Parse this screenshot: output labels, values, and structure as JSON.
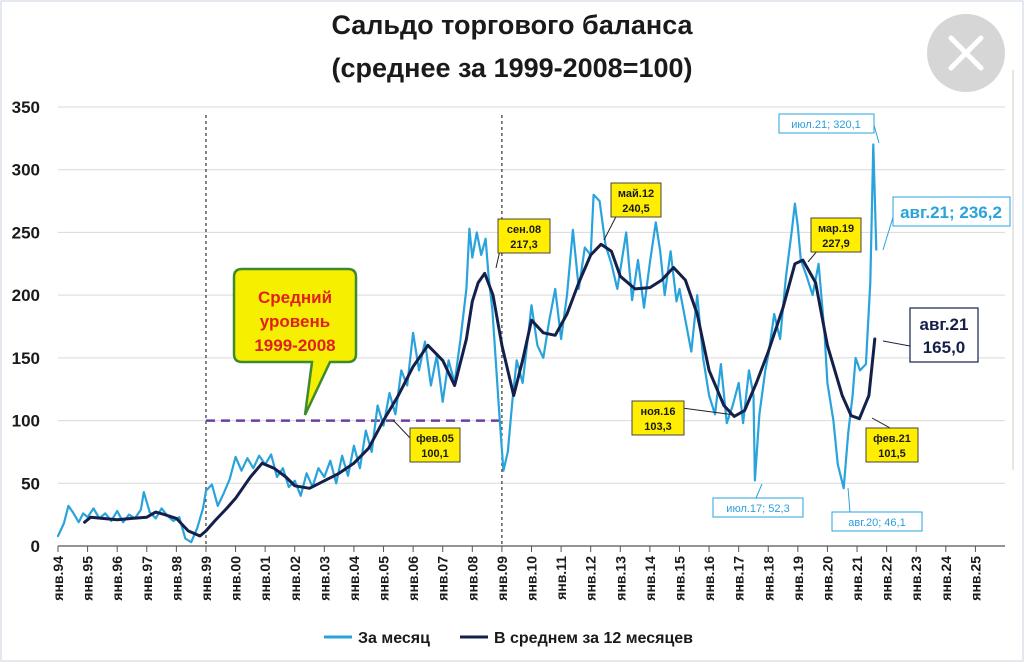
{
  "chart_data": {
    "type": "line",
    "title_line1": "Сальдо торгового баланса",
    "title_line2": "(среднее за 1999-2008=100)",
    "ylim": [
      0,
      350
    ],
    "yticks": [
      0,
      50,
      100,
      150,
      200,
      250,
      300,
      350
    ],
    "grid": true,
    "x_domain": [
      1994,
      2026
    ],
    "xticks": [
      {
        "x": 1994,
        "label": "янв.94"
      },
      {
        "x": 1995,
        "label": "янв.95"
      },
      {
        "x": 1996,
        "label": "янв.96"
      },
      {
        "x": 1997,
        "label": "янв.97"
      },
      {
        "x": 1998,
        "label": "янв.98"
      },
      {
        "x": 1999,
        "label": "янв.99"
      },
      {
        "x": 2000,
        "label": "янв.00"
      },
      {
        "x": 2001,
        "label": "янв.01"
      },
      {
        "x": 2002,
        "label": "янв.02"
      },
      {
        "x": 2003,
        "label": "янв.03"
      },
      {
        "x": 2004,
        "label": "янв.04"
      },
      {
        "x": 2005,
        "label": "янв.05"
      },
      {
        "x": 2006,
        "label": "янв.06"
      },
      {
        "x": 2007,
        "label": "янв.07"
      },
      {
        "x": 2008,
        "label": "янв.08"
      },
      {
        "x": 2009,
        "label": "янв.09"
      },
      {
        "x": 2010,
        "label": "янв.10"
      },
      {
        "x": 2011,
        "label": "янв.11"
      },
      {
        "x": 2012,
        "label": "янв.12"
      },
      {
        "x": 2013,
        "label": "янв.13"
      },
      {
        "x": 2014,
        "label": "янв.14"
      },
      {
        "x": 2015,
        "label": "янв.15"
      },
      {
        "x": 2016,
        "label": "янв.16"
      },
      {
        "x": 2017,
        "label": "янв.17"
      },
      {
        "x": 2018,
        "label": "янв.18"
      },
      {
        "x": 2019,
        "label": "янв.19"
      },
      {
        "x": 2020,
        "label": "янв.20"
      },
      {
        "x": 2021,
        "label": "янв.21"
      },
      {
        "x": 2022,
        "label": "янв.22"
      },
      {
        "x": 2023,
        "label": "янв.23"
      },
      {
        "x": 2024,
        "label": "янв.24"
      },
      {
        "x": 2025,
        "label": "янв.25"
      }
    ],
    "series": [
      {
        "name": "За месяц",
        "color": "#29a3dc",
        "points": [
          [
            1994.0,
            8
          ],
          [
            1994.2,
            18
          ],
          [
            1994.35,
            32
          ],
          [
            1994.5,
            27
          ],
          [
            1994.7,
            19
          ],
          [
            1994.85,
            26
          ],
          [
            1995.0,
            23
          ],
          [
            1995.2,
            30
          ],
          [
            1995.4,
            22
          ],
          [
            1995.6,
            26
          ],
          [
            1995.8,
            20
          ],
          [
            1996.0,
            28
          ],
          [
            1996.2,
            19
          ],
          [
            1996.4,
            25
          ],
          [
            1996.6,
            22
          ],
          [
            1996.8,
            29
          ],
          [
            1996.9,
            43
          ],
          [
            1997.1,
            27
          ],
          [
            1997.3,
            22
          ],
          [
            1997.5,
            30
          ],
          [
            1997.7,
            24
          ],
          [
            1997.9,
            20
          ],
          [
            1998.1,
            23
          ],
          [
            1998.3,
            6
          ],
          [
            1998.5,
            3
          ],
          [
            1998.7,
            14
          ],
          [
            1998.9,
            30
          ],
          [
            1999.0,
            44
          ],
          [
            1999.2,
            49
          ],
          [
            1999.4,
            32
          ],
          [
            1999.6,
            42
          ],
          [
            1999.8,
            53
          ],
          [
            2000.0,
            71
          ],
          [
            2000.2,
            60
          ],
          [
            2000.4,
            70
          ],
          [
            2000.6,
            62
          ],
          [
            2000.8,
            72
          ],
          [
            2001.0,
            65
          ],
          [
            2001.2,
            73
          ],
          [
            2001.4,
            55
          ],
          [
            2001.6,
            62
          ],
          [
            2001.8,
            47
          ],
          [
            2002.0,
            52
          ],
          [
            2002.2,
            40
          ],
          [
            2002.4,
            58
          ],
          [
            2002.6,
            47
          ],
          [
            2002.8,
            62
          ],
          [
            2003.0,
            55
          ],
          [
            2003.2,
            68
          ],
          [
            2003.4,
            50
          ],
          [
            2003.6,
            72
          ],
          [
            2003.8,
            56
          ],
          [
            2004.0,
            80
          ],
          [
            2004.2,
            62
          ],
          [
            2004.4,
            92
          ],
          [
            2004.6,
            75
          ],
          [
            2004.8,
            112
          ],
          [
            2005.0,
            96
          ],
          [
            2005.2,
            122
          ],
          [
            2005.4,
            105
          ],
          [
            2005.6,
            140
          ],
          [
            2005.8,
            128
          ],
          [
            2006.0,
            170
          ],
          [
            2006.2,
            140
          ],
          [
            2006.4,
            163
          ],
          [
            2006.6,
            128
          ],
          [
            2006.8,
            152
          ],
          [
            2007.0,
            115
          ],
          [
            2007.2,
            148
          ],
          [
            2007.4,
            130
          ],
          [
            2007.6,
            165
          ],
          [
            2007.8,
            205
          ],
          [
            2007.9,
            253
          ],
          [
            2008.0,
            230
          ],
          [
            2008.15,
            250
          ],
          [
            2008.3,
            232
          ],
          [
            2008.45,
            245
          ],
          [
            2008.55,
            215
          ],
          [
            2008.68,
            188
          ],
          [
            2008.8,
            145
          ],
          [
            2008.9,
            110
          ],
          [
            2009.05,
            60
          ],
          [
            2009.2,
            75
          ],
          [
            2009.35,
            115
          ],
          [
            2009.5,
            148
          ],
          [
            2009.7,
            130
          ],
          [
            2009.9,
            170
          ],
          [
            2010.0,
            192
          ],
          [
            2010.2,
            160
          ],
          [
            2010.4,
            150
          ],
          [
            2010.6,
            180
          ],
          [
            2010.8,
            205
          ],
          [
            2011.0,
            165
          ],
          [
            2011.2,
            200
          ],
          [
            2011.4,
            252
          ],
          [
            2011.6,
            205
          ],
          [
            2011.8,
            238
          ],
          [
            2012.0,
            232
          ],
          [
            2012.1,
            280
          ],
          [
            2012.3,
            275
          ],
          [
            2012.5,
            240
          ],
          [
            2012.7,
            225
          ],
          [
            2012.9,
            205
          ],
          [
            2013.0,
            220
          ],
          [
            2013.2,
            250
          ],
          [
            2013.4,
            196
          ],
          [
            2013.6,
            228
          ],
          [
            2013.8,
            190
          ],
          [
            2014.0,
            226
          ],
          [
            2014.2,
            258
          ],
          [
            2014.35,
            235
          ],
          [
            2014.5,
            200
          ],
          [
            2014.7,
            235
          ],
          [
            2014.9,
            195
          ],
          [
            2015.0,
            205
          ],
          [
            2015.2,
            180
          ],
          [
            2015.4,
            155
          ],
          [
            2015.6,
            200
          ],
          [
            2015.8,
            150
          ],
          [
            2016.0,
            120
          ],
          [
            2016.2,
            105
          ],
          [
            2016.4,
            145
          ],
          [
            2016.6,
            98
          ],
          [
            2016.8,
            112
          ],
          [
            2017.0,
            130
          ],
          [
            2017.15,
            98
          ],
          [
            2017.35,
            140
          ],
          [
            2017.5,
            120
          ],
          [
            2017.55,
            52.3
          ],
          [
            2017.7,
            105
          ],
          [
            2017.9,
            140
          ],
          [
            2018.0,
            152
          ],
          [
            2018.2,
            185
          ],
          [
            2018.4,
            165
          ],
          [
            2018.6,
            215
          ],
          [
            2018.8,
            252
          ],
          [
            2018.9,
            273
          ],
          [
            2019.0,
            255
          ],
          [
            2019.1,
            228
          ],
          [
            2019.3,
            215
          ],
          [
            2019.5,
            200
          ],
          [
            2019.7,
            225
          ],
          [
            2019.9,
            170
          ],
          [
            2020.0,
            130
          ],
          [
            2020.2,
            100
          ],
          [
            2020.35,
            65
          ],
          [
            2020.55,
            46.1
          ],
          [
            2020.7,
            90
          ],
          [
            2020.85,
            120
          ],
          [
            2020.95,
            150
          ],
          [
            2021.1,
            140
          ],
          [
            2021.3,
            145
          ],
          [
            2021.45,
            210
          ],
          [
            2021.55,
            320.1
          ],
          [
            2021.65,
            236.2
          ]
        ]
      },
      {
        "name": "В среднем за 12 месяцев",
        "color": "#14204a",
        "points": [
          [
            1994.9,
            19
          ],
          [
            1995.1,
            23
          ],
          [
            1995.5,
            22
          ],
          [
            1996.0,
            21
          ],
          [
            1996.5,
            22
          ],
          [
            1997.0,
            23
          ],
          [
            1997.3,
            27
          ],
          [
            1997.6,
            25
          ],
          [
            1998.0,
            22
          ],
          [
            1998.4,
            12
          ],
          [
            1998.8,
            8
          ],
          [
            1999.0,
            12
          ],
          [
            1999.3,
            20
          ],
          [
            1999.7,
            30
          ],
          [
            2000.0,
            38
          ],
          [
            2000.5,
            55
          ],
          [
            2000.9,
            66
          ],
          [
            2001.3,
            62
          ],
          [
            2001.7,
            55
          ],
          [
            2002.0,
            48
          ],
          [
            2002.5,
            46
          ],
          [
            2003.0,
            52
          ],
          [
            2003.5,
            58
          ],
          [
            2004.0,
            66
          ],
          [
            2004.5,
            78
          ],
          [
            2005.0,
            100.1
          ],
          [
            2005.5,
            120
          ],
          [
            2006.0,
            143
          ],
          [
            2006.5,
            160
          ],
          [
            2007.0,
            148
          ],
          [
            2007.4,
            128
          ],
          [
            2007.8,
            165
          ],
          [
            2008.0,
            195
          ],
          [
            2008.2,
            210
          ],
          [
            2008.42,
            217.3
          ],
          [
            2008.7,
            200
          ],
          [
            2009.0,
            160
          ],
          [
            2009.4,
            120
          ],
          [
            2009.7,
            148
          ],
          [
            2010.0,
            180
          ],
          [
            2010.4,
            170
          ],
          [
            2010.8,
            168
          ],
          [
            2011.2,
            185
          ],
          [
            2011.6,
            210
          ],
          [
            2012.0,
            232
          ],
          [
            2012.35,
            240.5
          ],
          [
            2012.7,
            235
          ],
          [
            2013.0,
            215
          ],
          [
            2013.5,
            205
          ],
          [
            2014.0,
            206
          ],
          [
            2014.4,
            212
          ],
          [
            2014.8,
            222
          ],
          [
            2015.2,
            212
          ],
          [
            2015.6,
            185
          ],
          [
            2016.0,
            140
          ],
          [
            2016.5,
            112
          ],
          [
            2016.85,
            103.3
          ],
          [
            2017.2,
            108
          ],
          [
            2017.6,
            130
          ],
          [
            2018.0,
            155
          ],
          [
            2018.5,
            190
          ],
          [
            2018.9,
            225
          ],
          [
            2019.17,
            227.9
          ],
          [
            2019.6,
            210
          ],
          [
            2020.0,
            160
          ],
          [
            2020.5,
            120
          ],
          [
            2020.8,
            104
          ],
          [
            2021.08,
            101.5
          ],
          [
            2021.4,
            120
          ],
          [
            2021.6,
            165.0
          ]
        ]
      }
    ],
    "reference_lines": {
      "vlines": [
        1999.0,
        2009.0
      ],
      "average_line": {
        "value": 100,
        "from": 1999.0,
        "to": 2009.0,
        "color": "#6a3fa0"
      }
    },
    "annotations": [
      {
        "id": "sep08",
        "text1": "сен.08",
        "text2": "217,3"
      },
      {
        "id": "may12",
        "text1": "май.12",
        "text2": "240,5"
      },
      {
        "id": "feb05",
        "text1": "фев.05",
        "text2": "100,1"
      },
      {
        "id": "nov16",
        "text1": "ноя.16",
        "text2": "103,3"
      },
      {
        "id": "mar19",
        "text1": "мар.19",
        "text2": "227,9"
      },
      {
        "id": "feb21",
        "text1": "фев.21",
        "text2": "101,5"
      },
      {
        "id": "jul21",
        "text": "июл.21; 320,1"
      },
      {
        "id": "jul17",
        "text": "июл.17; 52,3"
      },
      {
        "id": "aug20",
        "text": "авг.20; 46,1"
      },
      {
        "id": "aug21m",
        "text": "авг.21; 236,2"
      },
      {
        "id": "aug21a",
        "text1": "авг.21",
        "text2": "165,0"
      }
    ],
    "callout": {
      "line1": "Средний",
      "line2": "уровень",
      "line3": "1999-2008"
    },
    "legend": {
      "position": "bottom",
      "items": [
        "За месяц",
        "В среднем за 12 месяцев"
      ]
    }
  },
  "ui": {
    "close_icon": "close-icon"
  }
}
